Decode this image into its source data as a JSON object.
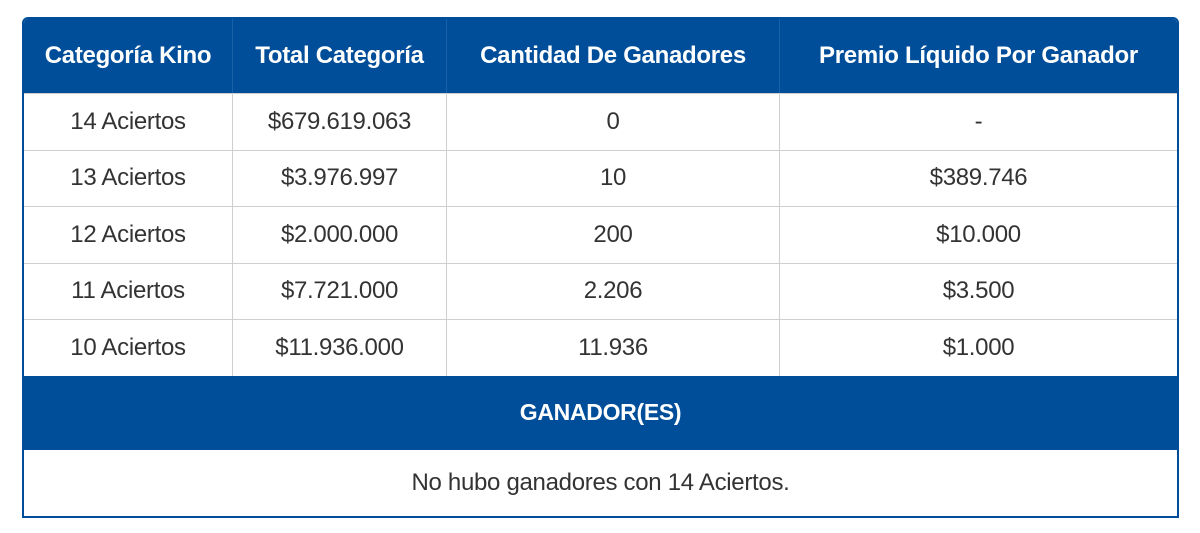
{
  "table": {
    "headers": [
      "Categoría Kino",
      "Total Categoría",
      "Cantidad De Ganadores",
      "Premio Líquido Por Ganador"
    ],
    "rows": [
      [
        "14 Aciertos",
        "$679.619.063",
        "0",
        "-"
      ],
      [
        "13 Aciertos",
        "$3.976.997",
        "10",
        "$389.746"
      ],
      [
        "12 Aciertos",
        "$2.000.000",
        "200",
        "$10.000"
      ],
      [
        "11 Aciertos",
        "$7.721.000",
        "2.206",
        "$3.500"
      ],
      [
        "10 Aciertos",
        "$11.936.000",
        "11.936",
        "$1.000"
      ]
    ]
  },
  "winners": {
    "title": "GANADOR(ES)",
    "message": "No hubo ganadores con 14 Aciertos."
  },
  "colors": {
    "header_bg": "#004e9a",
    "header_text": "#ffffff",
    "body_text": "#333333",
    "grid_line": "#cfcfcf"
  }
}
